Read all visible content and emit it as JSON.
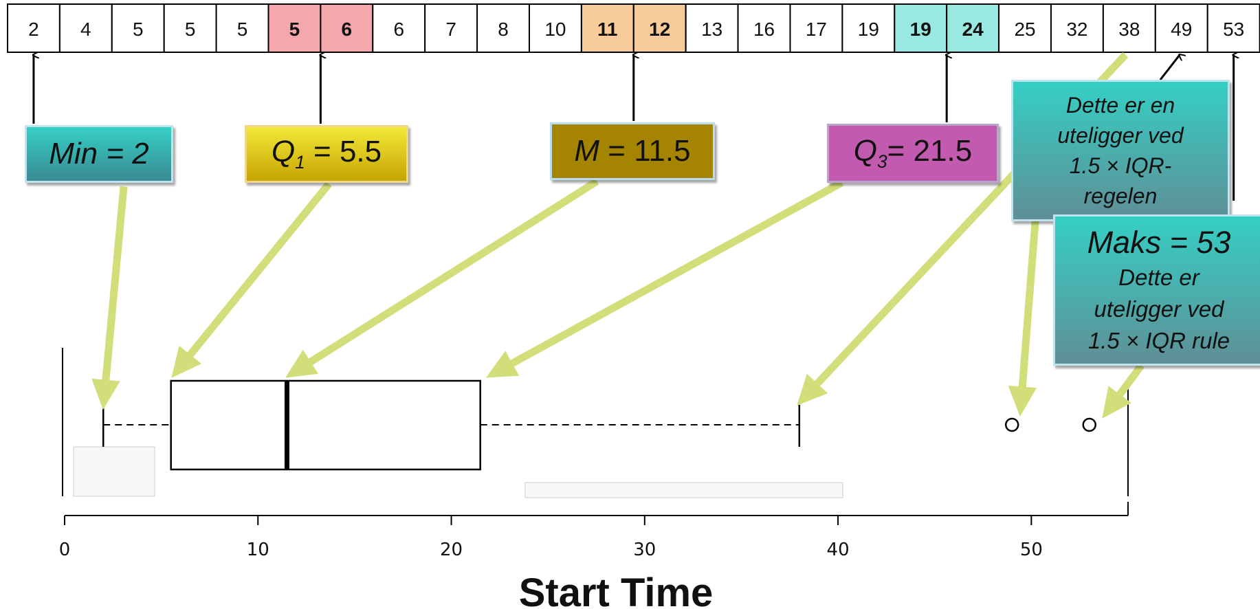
{
  "data_row": {
    "values": [
      "2",
      "4",
      "5",
      "5",
      "5",
      "5",
      "6",
      "6",
      "7",
      "8",
      "10",
      "11",
      "12",
      "13",
      "16",
      "17",
      "19",
      "19",
      "24",
      "25",
      "32",
      "38",
      "49",
      "53"
    ],
    "highlights": [
      {
        "indices": [
          5,
          6
        ],
        "color": "#f4a7ad",
        "bold": true
      },
      {
        "indices": [
          11,
          12
        ],
        "color": "#f8cc9a",
        "bold": true
      },
      {
        "indices": [
          17,
          18
        ],
        "color": "#99e8e2",
        "bold": true
      }
    ]
  },
  "labels": {
    "min": "Min = 2",
    "q1_letter": "Q",
    "q1_sub": "1",
    "q1_value": " = 5.5",
    "median_letter": "M",
    "median_value": " = 11.5",
    "q3_letter": "Q",
    "q3_sub": "3",
    "q3_value": "= 21.5",
    "outlier_lines": [
      "Dette er en",
      "uteligger ved",
      "1.5 × IQR-",
      "regelen"
    ],
    "max_title": "Maks = 53",
    "max_lines": [
      "Dette er",
      "uteligger ved",
      "1.5 × IQR rule"
    ]
  },
  "colors": {
    "arrow": "#d2de7a",
    "q1_highlight": "#f4a7ad",
    "median_highlight": "#f8cc9a",
    "q3_highlight": "#99e8e2"
  },
  "chart_data": {
    "type": "boxplot",
    "xlabel": "Start Time",
    "xlim": [
      0,
      55
    ],
    "xticks": [
      0,
      10,
      20,
      30,
      40,
      50
    ],
    "min": 2,
    "q1": 5.5,
    "median": 11.5,
    "q3": 21.5,
    "whisker_low": 2,
    "whisker_high": 38,
    "outliers": [
      49,
      53
    ]
  }
}
